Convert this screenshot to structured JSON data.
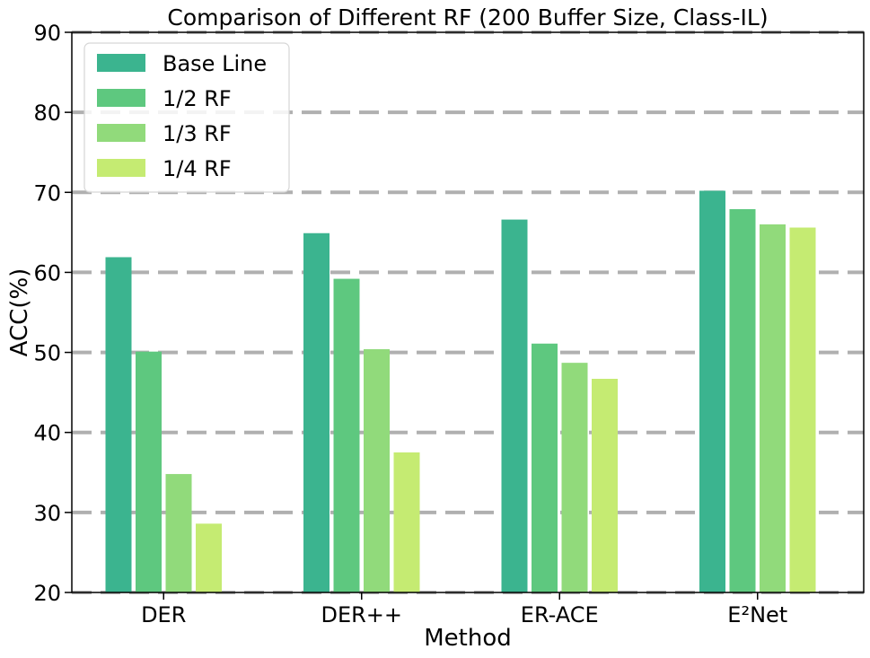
{
  "chart_data": {
    "type": "bar",
    "title": "Comparison of Different RF (200 Buffer Size, Class-IL)",
    "xlabel": "Method",
    "ylabel": "ACC(%)",
    "ylim": [
      20,
      90
    ],
    "yticks": [
      20,
      30,
      40,
      50,
      60,
      70,
      80,
      90
    ],
    "grid": "horizontal dashed",
    "legend_position": "top-left",
    "categories": [
      "DER",
      "DER++",
      "ER-ACE",
      "E²Net"
    ],
    "series": [
      {
        "name": "Base Line",
        "color": "#3bb48f",
        "values": [
          61.9,
          64.9,
          66.6,
          70.2
        ]
      },
      {
        "name": "1/2 RF",
        "color": "#5ec87f",
        "values": [
          50.1,
          59.2,
          51.1,
          67.9
        ]
      },
      {
        "name": "1/3 RF",
        "color": "#91da7b",
        "values": [
          34.8,
          50.4,
          48.7,
          66.0
        ]
      },
      {
        "name": "1/4 RF",
        "color": "#c5eb72",
        "values": [
          28.6,
          37.5,
          46.7,
          65.6
        ]
      }
    ]
  }
}
